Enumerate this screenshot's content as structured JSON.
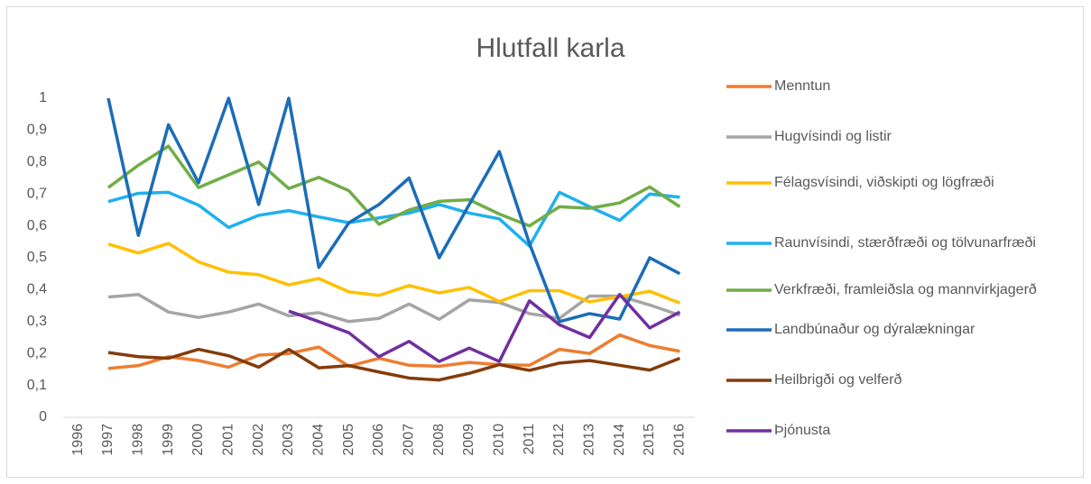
{
  "chart_data": {
    "type": "line",
    "title": "Hlutfall karla",
    "categories": [
      "1996",
      "1997",
      "1998",
      "1999",
      "2000",
      "2001",
      "2002",
      "2003",
      "2004",
      "2005",
      "2006",
      "2007",
      "2008",
      "2009",
      "2010",
      "2011",
      "2012",
      "2013",
      "2014",
      "2015",
      "2016"
    ],
    "series": [
      {
        "name": "Menntun",
        "color": "#ED7D31",
        "values": [
          null,
          0.153,
          0.162,
          0.19,
          0.178,
          0.157,
          0.195,
          0.2,
          0.22,
          0.16,
          0.185,
          0.163,
          0.16,
          0.172,
          0.165,
          0.163,
          0.213,
          0.2,
          0.258,
          0.225,
          0.207
        ]
      },
      {
        "name": "Hugvísindi og listir",
        "color": "#A5A5A5",
        "values": [
          null,
          0.377,
          0.385,
          0.33,
          0.313,
          0.33,
          0.355,
          0.318,
          0.328,
          0.3,
          0.31,
          0.355,
          0.307,
          0.368,
          0.36,
          0.325,
          0.31,
          0.38,
          0.38,
          0.352,
          0.32
        ]
      },
      {
        "name": "Félagsvísindi, viðskipti og lögfræði",
        "color": "#FFC000",
        "values": [
          null,
          0.543,
          0.515,
          0.545,
          0.487,
          0.455,
          0.447,
          0.415,
          0.435,
          0.393,
          0.382,
          0.413,
          0.39,
          0.407,
          0.363,
          0.397,
          0.397,
          0.362,
          0.378,
          0.395,
          0.358
        ]
      },
      {
        "name": "Raunvísindi, stærðfræði og tölvunarfræði",
        "color": "#1FB0EE",
        "values": [
          null,
          0.676,
          0.702,
          0.705,
          0.665,
          0.595,
          0.633,
          0.648,
          0.628,
          0.61,
          0.625,
          0.64,
          0.667,
          0.64,
          0.622,
          0.537,
          0.705,
          0.66,
          0.617,
          0.7,
          0.69
        ]
      },
      {
        "name": "Verkfræði, framleiðsla og mannvirkjagerð",
        "color": "#70AD47",
        "values": [
          null,
          0.72,
          0.79,
          0.85,
          0.72,
          0.76,
          0.8,
          0.717,
          0.752,
          0.71,
          0.605,
          0.65,
          0.677,
          0.682,
          0.637,
          0.6,
          0.66,
          0.655,
          0.672,
          0.722,
          0.66
        ]
      },
      {
        "name": "Landbúnaður og dýralækningar",
        "color": "#1B6DB8",
        "values": [
          null,
          1,
          0.57,
          0.917,
          0.735,
          1,
          0.667,
          1,
          0.47,
          0.61,
          0.667,
          0.75,
          0.5,
          0.667,
          0.833,
          0.545,
          0.3,
          0.325,
          0.308,
          0.5,
          0.45
        ]
      },
      {
        "name": "Heilbrigði og velferð",
        "color": "#843C0C",
        "values": [
          null,
          0.203,
          0.19,
          0.185,
          0.213,
          0.193,
          0.157,
          0.213,
          0.155,
          0.162,
          0.142,
          0.123,
          0.117,
          0.138,
          0.165,
          0.147,
          0.17,
          0.178,
          0.163,
          0.148,
          0.185
        ]
      },
      {
        "name": "Þjónusta",
        "color": "#7030A0",
        "values": [
          null,
          null,
          null,
          null,
          null,
          null,
          null,
          0.333,
          0.3,
          0.265,
          0.19,
          0.238,
          0.175,
          0.217,
          0.175,
          0.365,
          0.29,
          0.25,
          0.385,
          0.28,
          0.33
        ]
      }
    ],
    "ylim": [
      0,
      1
    ],
    "yticks": [
      0,
      {
        "value": 0.1,
        "label": "0,1"
      },
      {
        "value": 0.2,
        "label": "0,2"
      },
      {
        "value": 0.3,
        "label": "0,3"
      },
      {
        "value": 0.4,
        "label": "0,4"
      },
      {
        "value": 0.5,
        "label": "0,5"
      },
      {
        "value": 0.6,
        "label": "0,6"
      },
      {
        "value": 0.7,
        "label": "0,7"
      },
      {
        "value": 0.8,
        "label": "0,8"
      },
      {
        "value": 0.9,
        "label": "0,9"
      },
      1
    ],
    "grid": false,
    "legend": "right"
  }
}
